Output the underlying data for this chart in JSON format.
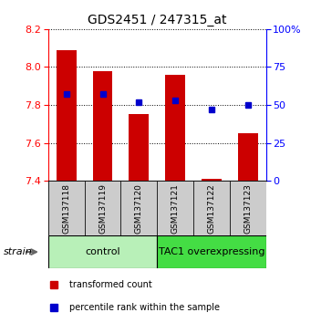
{
  "title": "GDS2451 / 247315_at",
  "samples": [
    "GSM137118",
    "GSM137119",
    "GSM137120",
    "GSM137121",
    "GSM137122",
    "GSM137123"
  ],
  "group_labels": [
    "control",
    "TAC1 overexpressing"
  ],
  "group_colors": [
    "#b8f0b8",
    "#44dd44"
  ],
  "transformed_counts": [
    8.09,
    7.98,
    7.75,
    7.96,
    7.41,
    7.65
  ],
  "percentile_ranks": [
    57,
    57,
    52,
    53,
    47,
    50
  ],
  "bar_color": "#cc0000",
  "dot_color": "#0000cc",
  "ylim_left": [
    7.4,
    8.2
  ],
  "ylim_right": [
    0,
    100
  ],
  "yticks_left": [
    7.4,
    7.6,
    7.8,
    8.0,
    8.2
  ],
  "yticks_right": [
    0,
    25,
    50,
    75,
    100
  ],
  "legend_red": "transformed count",
  "legend_blue": "percentile rank within the sample",
  "background_color": "#ffffff",
  "sample_box_color": "#cccccc",
  "bar_width": 0.55
}
